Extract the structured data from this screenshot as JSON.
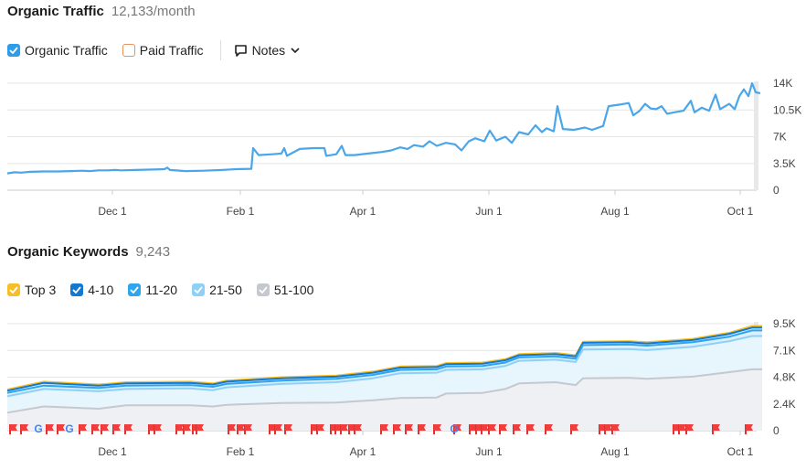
{
  "traffic": {
    "title": "Organic Traffic",
    "value": "12,133/month",
    "legend": [
      {
        "label": "Organic Traffic",
        "checked": true,
        "color": "#2e9ce6"
      },
      {
        "label": "Paid Traffic",
        "checked": false,
        "color": "#e8935a"
      }
    ],
    "notes_label": "Notes"
  },
  "keywords": {
    "title": "Organic Keywords",
    "value": "9,243",
    "legend": [
      {
        "label": "Top 3",
        "color": "#f6bf26"
      },
      {
        "label": "4-10",
        "color": "#1178d3"
      },
      {
        "label": "11-20",
        "color": "#2ea5ec"
      },
      {
        "label": "21-50",
        "color": "#8fd0f7"
      },
      {
        "label": "51-100",
        "color": "#c6c8cf"
      }
    ]
  },
  "chart_data": [
    {
      "type": "line",
      "title": "Organic Traffic",
      "x_ticks": [
        "Dec 1",
        "Feb 1",
        "Apr 1",
        "Jun 1",
        "Aug 1",
        "Oct 1"
      ],
      "y_ticks": [
        "14K",
        "10.5K",
        "7K",
        "3.5K",
        "0"
      ],
      "ylim": [
        0,
        14000
      ],
      "series": [
        {
          "name": "Organic Traffic",
          "color": "#4aa6e8",
          "points": [
            [
              0,
              2200
            ],
            [
              8,
              2350
            ],
            [
              15,
              2300
            ],
            [
              25,
              2400
            ],
            [
              40,
              2450
            ],
            [
              55,
              2450
            ],
            [
              70,
              2500
            ],
            [
              82,
              2550
            ],
            [
              90,
              2500
            ],
            [
              100,
              2600
            ],
            [
              110,
              2600
            ],
            [
              118,
              2650
            ],
            [
              125,
              2600
            ],
            [
              140,
              2650
            ],
            [
              160,
              2700
            ],
            [
              172,
              2750
            ],
            [
              175,
              2950
            ],
            [
              178,
              2650
            ],
            [
              195,
              2500
            ],
            [
              215,
              2550
            ],
            [
              235,
              2650
            ],
            [
              250,
              2750
            ],
            [
              267,
              2800
            ],
            [
              269,
              5500
            ],
            [
              275,
              4600
            ],
            [
              290,
              4700
            ],
            [
              300,
              4800
            ],
            [
              303,
              5500
            ],
            [
              306,
              4500
            ],
            [
              320,
              5400
            ],
            [
              335,
              5500
            ],
            [
              347,
              5500
            ],
            [
              349,
              4500
            ],
            [
              360,
              4700
            ],
            [
              366,
              5800
            ],
            [
              370,
              4600
            ],
            [
              380,
              4600
            ],
            [
              395,
              4800
            ],
            [
              410,
              5000
            ],
            [
              420,
              5200
            ],
            [
              430,
              5600
            ],
            [
              438,
              5400
            ],
            [
              445,
              5900
            ],
            [
              455,
              5700
            ],
            [
              462,
              6400
            ],
            [
              470,
              5800
            ],
            [
              480,
              6200
            ],
            [
              490,
              6000
            ],
            [
              497,
              5200
            ],
            [
              505,
              6400
            ],
            [
              512,
              6800
            ],
            [
              522,
              6400
            ],
            [
              528,
              7800
            ],
            [
              535,
              6500
            ],
            [
              545,
              7000
            ],
            [
              552,
              6200
            ],
            [
              560,
              7600
            ],
            [
              570,
              7300
            ],
            [
              578,
              8500
            ],
            [
              585,
              7600
            ],
            [
              590,
              8100
            ],
            [
              598,
              7700
            ],
            [
              602,
              11000
            ],
            [
              608,
              8000
            ],
            [
              620,
              7900
            ],
            [
              632,
              8200
            ],
            [
              640,
              7900
            ],
            [
              652,
              8400
            ],
            [
              658,
              11000
            ],
            [
              670,
              11200
            ],
            [
              680,
              11400
            ],
            [
              685,
              9800
            ],
            [
              692,
              10400
            ],
            [
              698,
              11300
            ],
            [
              704,
              10700
            ],
            [
              710,
              10600
            ],
            [
              716,
              11000
            ],
            [
              722,
              10000
            ],
            [
              730,
              10200
            ],
            [
              740,
              10400
            ],
            [
              748,
              11700
            ],
            [
              752,
              10200
            ],
            [
              760,
              10800
            ],
            [
              768,
              10400
            ],
            [
              775,
              12500
            ],
            [
              780,
              10600
            ],
            [
              790,
              11300
            ],
            [
              796,
              10600
            ],
            [
              801,
              12300
            ],
            [
              806,
              13200
            ],
            [
              811,
              12300
            ],
            [
              815,
              14000
            ],
            [
              819,
              12800
            ],
            [
              824,
              12700
            ]
          ]
        }
      ]
    },
    {
      "type": "area",
      "title": "Organic Keywords",
      "x_ticks": [
        "Dec 1",
        "Feb 1",
        "Apr 1",
        "Jun 1",
        "Aug 1",
        "Oct 1"
      ],
      "y_ticks": [
        "9.5K",
        "7.1K",
        "4.8K",
        "2.4K",
        "0"
      ],
      "ylim": [
        0,
        9500
      ],
      "series": [
        {
          "name": "Top 3",
          "color": "#f6bf26",
          "points": [
            [
              0,
              3650
            ],
            [
              40,
              4350
            ],
            [
              100,
              4100
            ],
            [
              130,
              4300
            ],
            [
              200,
              4350
            ],
            [
              225,
              4200
            ],
            [
              240,
              4450
            ],
            [
              300,
              4750
            ],
            [
              360,
              4900
            ],
            [
              400,
              5250
            ],
            [
              430,
              5700
            ],
            [
              470,
              5750
            ],
            [
              480,
              6000
            ],
            [
              520,
              6050
            ],
            [
              545,
              6350
            ],
            [
              560,
              6800
            ],
            [
              600,
              6900
            ],
            [
              622,
              6700
            ],
            [
              630,
              7900
            ],
            [
              680,
              7950
            ],
            [
              700,
              7850
            ],
            [
              750,
              8150
            ],
            [
              790,
              8700
            ],
            [
              815,
              9300
            ],
            [
              826,
              9300
            ]
          ]
        },
        {
          "name": "4-10",
          "color": "#1178d3",
          "points": [
            [
              0,
              3550
            ],
            [
              40,
              4250
            ],
            [
              100,
              4000
            ],
            [
              130,
              4200
            ],
            [
              200,
              4250
            ],
            [
              225,
              4100
            ],
            [
              240,
              4350
            ],
            [
              300,
              4650
            ],
            [
              360,
              4800
            ],
            [
              400,
              5150
            ],
            [
              430,
              5600
            ],
            [
              470,
              5650
            ],
            [
              480,
              5900
            ],
            [
              520,
              5950
            ],
            [
              545,
              6250
            ],
            [
              560,
              6700
            ],
            [
              600,
              6800
            ],
            [
              622,
              6600
            ],
            [
              630,
              7800
            ],
            [
              680,
              7850
            ],
            [
              700,
              7750
            ],
            [
              750,
              8050
            ],
            [
              790,
              8600
            ],
            [
              815,
              9150
            ],
            [
              826,
              9150
            ]
          ]
        },
        {
          "name": "11-20",
          "color": "#2ea5ec",
          "points": [
            [
              0,
              3350
            ],
            [
              40,
              4000
            ],
            [
              100,
              3800
            ],
            [
              130,
              4000
            ],
            [
              200,
              4050
            ],
            [
              225,
              3900
            ],
            [
              240,
              4150
            ],
            [
              300,
              4450
            ],
            [
              360,
              4600
            ],
            [
              400,
              4950
            ],
            [
              430,
              5400
            ],
            [
              470,
              5450
            ],
            [
              480,
              5700
            ],
            [
              520,
              5750
            ],
            [
              545,
              6050
            ],
            [
              560,
              6500
            ],
            [
              600,
              6600
            ],
            [
              622,
              6400
            ],
            [
              630,
              7600
            ],
            [
              680,
              7650
            ],
            [
              700,
              7550
            ],
            [
              750,
              7850
            ],
            [
              790,
              8350
            ],
            [
              815,
              8900
            ],
            [
              826,
              8900
            ]
          ]
        },
        {
          "name": "21-50",
          "color": "#8fd0f7",
          "points": [
            [
              0,
              3050
            ],
            [
              40,
              3700
            ],
            [
              100,
              3500
            ],
            [
              130,
              3700
            ],
            [
              200,
              3750
            ],
            [
              225,
              3600
            ],
            [
              240,
              3850
            ],
            [
              300,
              4150
            ],
            [
              360,
              4300
            ],
            [
              400,
              4650
            ],
            [
              430,
              5100
            ],
            [
              470,
              5150
            ],
            [
              480,
              5400
            ],
            [
              520,
              5450
            ],
            [
              545,
              5750
            ],
            [
              560,
              6200
            ],
            [
              600,
              6300
            ],
            [
              622,
              6100
            ],
            [
              630,
              7200
            ],
            [
              680,
              7250
            ],
            [
              700,
              7150
            ],
            [
              750,
              7450
            ],
            [
              790,
              7950
            ],
            [
              815,
              8400
            ],
            [
              826,
              8400
            ]
          ]
        },
        {
          "name": "51-100",
          "color": "#c6c8cf",
          "points": [
            [
              0,
              1600
            ],
            [
              40,
              2150
            ],
            [
              100,
              1950
            ],
            [
              130,
              2250
            ],
            [
              200,
              2250
            ],
            [
              225,
              2150
            ],
            [
              240,
              2300
            ],
            [
              300,
              2450
            ],
            [
              360,
              2500
            ],
            [
              400,
              2700
            ],
            [
              430,
              2900
            ],
            [
              470,
              2950
            ],
            [
              480,
              3300
            ],
            [
              520,
              3350
            ],
            [
              545,
              3700
            ],
            [
              560,
              4200
            ],
            [
              600,
              4300
            ],
            [
              622,
              4050
            ],
            [
              630,
              4650
            ],
            [
              680,
              4700
            ],
            [
              700,
              4600
            ],
            [
              750,
              4800
            ],
            [
              790,
              5200
            ],
            [
              815,
              5450
            ],
            [
              826,
              5450
            ]
          ]
        }
      ],
      "flag_positions": [
        14,
        26,
        54,
        66,
        90,
        104,
        114,
        127,
        140,
        166,
        172,
        196,
        204,
        214,
        218,
        253,
        263,
        271,
        298,
        304,
        315,
        344,
        350,
        365,
        370,
        376,
        385,
        391,
        420,
        434,
        447,
        461,
        478,
        500,
        517,
        524,
        530,
        538,
        550,
        565,
        580,
        600,
        628,
        659,
        665,
        673,
        740,
        746,
        754,
        783,
        819
      ],
      "google_flags": [
        42,
        76,
        497
      ]
    }
  ]
}
